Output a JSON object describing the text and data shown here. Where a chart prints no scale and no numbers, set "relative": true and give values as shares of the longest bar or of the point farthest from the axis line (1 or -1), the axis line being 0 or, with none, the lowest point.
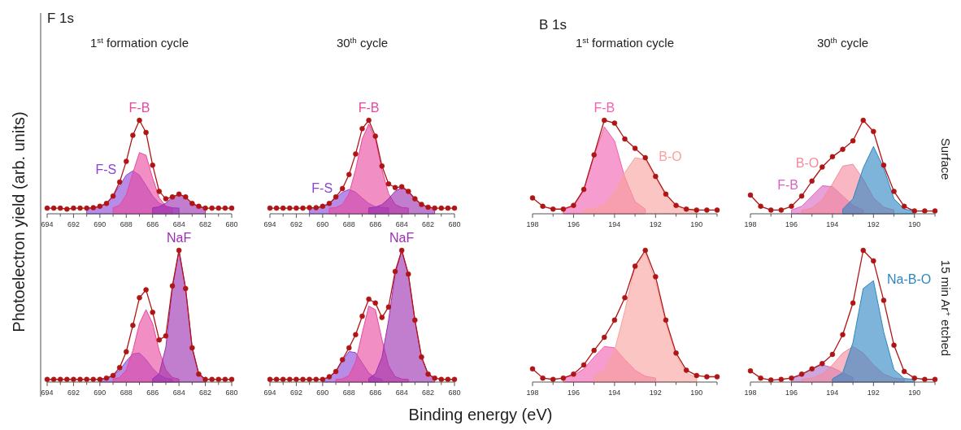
{
  "chart_data": [
    {
      "type": "area",
      "title": "1$^{st}$ formation cycle",
      "ylabel": "Photoelectron yield (arb. units)",
      "annotations": [
        "F 1s"
      ],
      "relative": true,
      "tick_labels": "x",
      "xlim": [
        694,
        680
      ],
      "xticks": [
        694,
        {
          "value": 693,
          "label": null
        },
        692,
        {
          "value": 691,
          "label": null
        },
        690,
        {
          "value": 689,
          "label": null
        },
        688,
        {
          "value": 687,
          "label": null
        },
        686,
        {
          "value": 685,
          "label": null
        },
        684,
        {
          "value": 683,
          "label": null
        },
        682,
        {
          "value": 681,
          "label": null
        },
        680
      ],
      "x": [
        694,
        693.5,
        693,
        692.5,
        692,
        691.5,
        691,
        690.5,
        690,
        689.5,
        689,
        688.5,
        688,
        687.5,
        687,
        686.5,
        686,
        685.5,
        685,
        684.5,
        684,
        683.5,
        683,
        682.5,
        682,
        681.5,
        681,
        680.5,
        680
      ],
      "series": [
        {
          "name": "F-S",
          "color": "#8a45d6",
          "x": [
            691,
            690.5,
            690,
            689.5,
            689,
            688.5,
            688,
            687.5,
            687,
            686.5,
            686,
            685.5,
            685,
            684.5,
            684
          ],
          "values": [
            0.06,
            0.064,
            0.078,
            0.114,
            0.19,
            0.303,
            0.413,
            0.46,
            0.413,
            0.303,
            0.19,
            0.114,
            0.078,
            0.064,
            0.06
          ]
        },
        {
          "name": "F-B",
          "color": "#e8489e",
          "x": [
            689,
            688.5,
            688,
            687.5,
            687,
            686.5,
            686,
            685.5,
            685,
            684.5
          ],
          "values": [
            0.064,
            0.092,
            0.203,
            0.436,
            0.655,
            0.626,
            0.383,
            0.17,
            0.083,
            0.063
          ]
        },
        {
          "color": "#9b2fb0",
          "x": [
            686,
            685.5,
            685,
            684.5,
            684,
            683.5,
            683,
            682.5,
            682
          ],
          "values": [
            0.063,
            0.075,
            0.114,
            0.176,
            0.21,
            0.176,
            0.114,
            0.075,
            0.063
          ]
        },
        {
          "type": "line",
          "marker": "circle",
          "color": "#b01515",
          "values": [
            0.06,
            0.06,
            0.06,
            0.05,
            0.06,
            0.06,
            0.06,
            0.065,
            0.08,
            0.11,
            0.19,
            0.34,
            0.56,
            0.84,
            1.0,
            0.87,
            0.52,
            0.24,
            0.16,
            0.18,
            0.21,
            0.18,
            0.11,
            0.08,
            0.06,
            0.06,
            0.06,
            0.06,
            0.06
          ]
        }
      ]
    },
    {
      "type": "area",
      "title": "30$^{th}$ cycle",
      "relative": true,
      "tick_labels": "x",
      "xlim": [
        694,
        680
      ],
      "xticks": [
        694,
        {
          "value": 693,
          "label": null
        },
        692,
        {
          "value": 691,
          "label": null
        },
        690,
        {
          "value": 689,
          "label": null
        },
        688,
        {
          "value": 687,
          "label": null
        },
        686,
        {
          "value": 685,
          "label": null
        },
        684,
        {
          "value": 683,
          "label": null
        },
        682,
        {
          "value": 681,
          "label": null
        },
        680
      ],
      "x": [
        694,
        693.5,
        693,
        692.5,
        692,
        691.5,
        691,
        690.5,
        690,
        689.5,
        689,
        688.5,
        688,
        687.5,
        687,
        686.5,
        686,
        685.5,
        685,
        684.5,
        684,
        683.5,
        683,
        682.5,
        682,
        681.5,
        681,
        680.5,
        680
      ],
      "series": [
        {
          "name": "F-S",
          "color": "#8a45d6",
          "x": [
            691,
            690.5,
            690,
            689.5,
            689,
            688.5,
            688,
            687.5,
            687,
            686.5,
            686,
            685.5,
            685
          ],
          "values": [
            0.062,
            0.066,
            0.077,
            0.11,
            0.168,
            0.231,
            0.26,
            0.231,
            0.168,
            0.11,
            0.077,
            0.066,
            0.062
          ]
        },
        {
          "name": "F-B",
          "color": "#e8489e",
          "x": [
            689.5,
            689,
            688.5,
            688,
            687.5,
            687,
            686.5,
            686,
            685.5,
            685,
            684.5,
            684,
            683.5
          ],
          "values": [
            0.061,
            0.067,
            0.1,
            0.215,
            0.472,
            0.8,
            0.96,
            0.8,
            0.472,
            0.215,
            0.1,
            0.067,
            0.061
          ]
        },
        {
          "color": "#9b2fb0",
          "x": [
            686.5,
            686,
            685.5,
            685,
            684.5,
            684,
            683.5,
            683,
            682.5,
            682,
            681.5
          ],
          "values": [
            0.062,
            0.07,
            0.098,
            0.161,
            0.241,
            0.28,
            0.241,
            0.161,
            0.098,
            0.07,
            0.062
          ]
        },
        {
          "type": "line",
          "marker": "circle",
          "color": "#b01515",
          "values": [
            0.06,
            0.06,
            0.06,
            0.06,
            0.06,
            0.06,
            0.065,
            0.065,
            0.08,
            0.11,
            0.18,
            0.27,
            0.42,
            0.64,
            0.91,
            1.0,
            0.83,
            0.51,
            0.32,
            0.28,
            0.29,
            0.24,
            0.16,
            0.1,
            0.07,
            0.06,
            0.06,
            0.06,
            0.06
          ]
        }
      ]
    },
    {
      "type": "area",
      "title": "1$^{st}$ formation cycle",
      "annotations": [
        "B 1s"
      ],
      "relative": true,
      "tick_labels": "x",
      "xlim": [
        198,
        189
      ],
      "xticks": [
        198,
        {
          "value": 197,
          "label": null
        },
        196,
        {
          "value": 195,
          "label": null
        },
        194,
        {
          "value": 193,
          "label": null
        },
        192,
        {
          "value": 191,
          "label": null
        },
        190,
        {
          "value": 189,
          "label": null
        }
      ],
      "x": [
        198,
        197.5,
        197,
        196.5,
        196,
        195.5,
        195,
        194.5,
        194,
        193.5,
        193,
        192.5,
        192,
        191.5,
        191,
        190.5,
        190,
        189.5,
        189
      ],
      "series": [
        {
          "name": "F-B",
          "color": "#f060b0",
          "x": [
            196.5,
            196,
            195.5,
            195,
            194.5,
            194,
            193.5,
            193,
            192.5
          ],
          "values": [
            0.045,
            0.08,
            0.25,
            0.62,
            0.93,
            0.78,
            0.39,
            0.13,
            0.05
          ]
        },
        {
          "name": "B-O",
          "color": "#f7a29c",
          "x": [
            195.5,
            195,
            194.5,
            194,
            193.5,
            193,
            192.5,
            192,
            191.5,
            191,
            190.5,
            190
          ],
          "values": [
            0.043,
            0.053,
            0.1,
            0.23,
            0.44,
            0.6,
            0.58,
            0.39,
            0.2,
            0.09,
            0.05,
            0.04
          ]
        },
        {
          "type": "line",
          "marker": "circle",
          "color": "#b01515",
          "values": [
            0.17,
            0.08,
            0.05,
            0.05,
            0.09,
            0.26,
            0.63,
            1.0,
            0.97,
            0.8,
            0.7,
            0.6,
            0.4,
            0.21,
            0.09,
            0.05,
            0.04,
            0.04,
            0.04
          ]
        }
      ]
    },
    {
      "type": "area",
      "title": "30$^{th}$ cycle",
      "annotations": [
        "Surface"
      ],
      "relative": true,
      "tick_labels": "x",
      "xlim": [
        198,
        189
      ],
      "xticks": [
        198,
        {
          "value": 197,
          "label": null
        },
        196,
        {
          "value": 195,
          "label": null
        },
        194,
        {
          "value": 193,
          "label": null
        },
        192,
        {
          "value": 191,
          "label": null
        },
        190,
        {
          "value": 189,
          "label": null
        }
      ],
      "x": [
        198,
        197.5,
        197,
        196.5,
        196,
        195.5,
        195,
        194.5,
        194,
        193.5,
        193,
        192.5,
        192,
        191.5,
        191,
        190.5,
        190,
        189.5,
        189
      ],
      "series": [
        {
          "name": "F-B",
          "color": "#d865c0",
          "x": [
            196,
            195.5,
            195,
            194.5,
            194,
            193.5,
            193,
            192.5
          ],
          "values": [
            0.04,
            0.08,
            0.19,
            0.3,
            0.29,
            0.19,
            0.09,
            0.04
          ]
        },
        {
          "name": "B-O",
          "color": "#f48a9e",
          "x": [
            195.5,
            195,
            194.5,
            194,
            193.5,
            193,
            192.5,
            192,
            191.5,
            191
          ],
          "values": [
            0.035,
            0.06,
            0.15,
            0.32,
            0.51,
            0.53,
            0.37,
            0.17,
            0.07,
            0.04
          ]
        },
        {
          "color": "#2e86c1",
          "x": [
            193.5,
            193,
            192.5,
            192,
            191.5,
            191,
            190.5,
            190
          ],
          "values": [
            0.05,
            0.16,
            0.49,
            0.72,
            0.49,
            0.16,
            0.05,
            0.03
          ]
        },
        {
          "type": "line",
          "marker": "circle",
          "color": "#b01515",
          "values": [
            0.2,
            0.08,
            0.04,
            0.04,
            0.08,
            0.19,
            0.35,
            0.5,
            0.61,
            0.69,
            0.78,
            1.0,
            0.88,
            0.52,
            0.24,
            0.08,
            0.03,
            0.03,
            0.03
          ]
        }
      ]
    },
    {
      "type": "area",
      "relative": true,
      "tick_labels": "x",
      "xlim": [
        694,
        680
      ],
      "xticks": [
        694,
        {
          "value": 693,
          "label": null
        },
        692,
        {
          "value": 691,
          "label": null
        },
        690,
        {
          "value": 689,
          "label": null
        },
        688,
        {
          "value": 687,
          "label": null
        },
        686,
        {
          "value": 685,
          "label": null
        },
        684,
        {
          "value": 683,
          "label": null
        },
        682,
        {
          "value": 681,
          "label": null
        },
        680
      ],
      "x": [
        694,
        693.5,
        693,
        692.5,
        692,
        691.5,
        691,
        690.5,
        690,
        689.5,
        689,
        688.5,
        688,
        687.5,
        687,
        686.5,
        686,
        685.5,
        685,
        684.5,
        684,
        683.5,
        683,
        682.5,
        682,
        681.5,
        681,
        680.5,
        680
      ],
      "series": [
        {
          "color": "#8a45d6",
          "x": [
            690,
            689.5,
            689,
            688.5,
            688,
            687.5,
            687,
            686.5,
            686,
            685.5,
            685,
            684.5
          ],
          "values": [
            0.022,
            0.028,
            0.048,
            0.092,
            0.158,
            0.214,
            0.22,
            0.172,
            0.104,
            0.055,
            0.03,
            0.022
          ]
        },
        {
          "color": "#e8489e",
          "x": [
            689,
            688.5,
            688,
            687.5,
            687,
            686.5,
            686,
            685.5,
            685,
            684.5,
            684
          ],
          "values": [
            0.022,
            0.035,
            0.092,
            0.238,
            0.444,
            0.55,
            0.444,
            0.238,
            0.092,
            0.035,
            0.022
          ]
        },
        {
          "name": "NaF",
          "color": "#9b2fb0",
          "x": [
            686,
            685.5,
            685,
            684.5,
            684,
            683.5,
            683,
            682.5,
            682
          ],
          "values": [
            0.024,
            0.063,
            0.264,
            0.713,
            1.0,
            0.713,
            0.264,
            0.063,
            0.024
          ]
        },
        {
          "type": "line",
          "marker": "circle",
          "color": "#b01515",
          "values": [
            0.02,
            0.02,
            0.02,
            0.02,
            0.02,
            0.02,
            0.02,
            0.02,
            0.02,
            0.03,
            0.05,
            0.11,
            0.23,
            0.43,
            0.64,
            0.7,
            0.53,
            0.32,
            0.35,
            0.73,
            1.0,
            0.71,
            0.26,
            0.06,
            0.02,
            0.02,
            0.02,
            0.02,
            0.02
          ]
        }
      ]
    },
    {
      "type": "area",
      "xlabel": "Binding energy (eV)",
      "relative": true,
      "tick_labels": "x",
      "xlim": [
        694,
        680
      ],
      "xticks": [
        694,
        {
          "value": 693,
          "label": null
        },
        692,
        {
          "value": 691,
          "label": null
        },
        690,
        {
          "value": 689,
          "label": null
        },
        688,
        {
          "value": 687,
          "label": null
        },
        686,
        {
          "value": 685,
          "label": null
        },
        684,
        {
          "value": 683,
          "label": null
        },
        682,
        {
          "value": 681,
          "label": null
        },
        680
      ],
      "x": [
        694,
        693.5,
        693,
        692.5,
        692,
        691.5,
        691,
        690.5,
        690,
        689.5,
        689,
        688.5,
        688,
        687.5,
        687,
        686.5,
        686,
        685.5,
        685,
        684.5,
        684,
        683.5,
        683,
        682.5,
        682,
        681.5,
        681,
        680.5,
        680
      ],
      "series": [
        {
          "color": "#8a45d6",
          "x": [
            690,
            689.5,
            689,
            688.5,
            688,
            687.5,
            687,
            686.5,
            686,
            685.5
          ],
          "values": [
            0.023,
            0.037,
            0.081,
            0.162,
            0.232,
            0.223,
            0.145,
            0.069,
            0.032,
            0.022
          ]
        },
        {
          "color": "#e8489e",
          "x": [
            689,
            688.5,
            688,
            687.5,
            687,
            686.5,
            686,
            685.5,
            685,
            684.5,
            684,
            683.5
          ],
          "values": [
            0.02,
            0.024,
            0.05,
            0.153,
            0.372,
            0.577,
            0.549,
            0.322,
            0.124,
            0.041,
            0.023,
            0.02
          ]
        },
        {
          "name": "NaF",
          "color": "#9b2fb0",
          "x": [
            686.5,
            686,
            685.5,
            685,
            684.5,
            684,
            683.5,
            683,
            682.5,
            682,
            681.5
          ],
          "values": [
            0.027,
            0.063,
            0.189,
            0.469,
            0.82,
            1.0,
            0.82,
            0.469,
            0.189,
            0.063,
            0.027
          ]
        },
        {
          "type": "line",
          "marker": "circle",
          "color": "#b01515",
          "values": [
            0.02,
            0.02,
            0.02,
            0.02,
            0.02,
            0.02,
            0.02,
            0.02,
            0.02,
            0.04,
            0.08,
            0.17,
            0.26,
            0.36,
            0.5,
            0.63,
            0.6,
            0.49,
            0.57,
            0.84,
            1.0,
            0.82,
            0.47,
            0.19,
            0.06,
            0.03,
            0.02,
            0.02,
            0.02
          ]
        }
      ]
    },
    {
      "type": "area",
      "relative": true,
      "tick_labels": "x",
      "xlim": [
        198,
        189
      ],
      "xticks": [
        198,
        {
          "value": 197,
          "label": null
        },
        196,
        {
          "value": 195,
          "label": null
        },
        194,
        {
          "value": 193,
          "label": null
        },
        192,
        {
          "value": 191,
          "label": null
        },
        190,
        {
          "value": 189,
          "label": null
        }
      ],
      "x": [
        198,
        197.5,
        197,
        196.5,
        196,
        195.5,
        195,
        194.5,
        194,
        193.5,
        193,
        192.5,
        192,
        191.5,
        191,
        190.5,
        190,
        189.5,
        189
      ],
      "series": [
        {
          "color": "#f060b0",
          "x": [
            196.5,
            196,
            195.5,
            195,
            194.5,
            194,
            193.5,
            193,
            192.5,
            192
          ],
          "values": [
            0.033,
            0.05,
            0.1,
            0.19,
            0.27,
            0.26,
            0.17,
            0.09,
            0.044,
            0.03
          ]
        },
        {
          "color": "#f7a29c",
          "x": [
            195,
            194.5,
            194,
            193.5,
            193,
            192.5,
            192,
            191.5,
            191,
            190.5,
            190
          ],
          "values": [
            0.04,
            0.09,
            0.24,
            0.54,
            0.88,
            0.98,
            0.76,
            0.45,
            0.2,
            0.07,
            0.035
          ]
        },
        {
          "type": "line",
          "marker": "circle",
          "color": "#b01515",
          "values": [
            0.1,
            0.03,
            0.02,
            0.03,
            0.06,
            0.13,
            0.24,
            0.34,
            0.47,
            0.64,
            0.88,
            1.0,
            0.8,
            0.47,
            0.22,
            0.09,
            0.05,
            0.04,
            0.04
          ]
        }
      ]
    },
    {
      "type": "area",
      "annotations": [
        "15 min Ar$^{+}$ etched"
      ],
      "relative": true,
      "tick_labels": "x",
      "xlim": [
        198,
        189
      ],
      "xticks": [
        198,
        {
          "value": 197,
          "label": null
        },
        196,
        {
          "value": 195,
          "label": null
        },
        194,
        {
          "value": 193,
          "label": null
        },
        192,
        {
          "value": 191,
          "label": null
        },
        190,
        {
          "value": 189,
          "label": null
        }
      ],
      "x": [
        198,
        197.5,
        197,
        196.5,
        196,
        195.5,
        195,
        194.5,
        194,
        193.5,
        193,
        192.5,
        192,
        191.5,
        191,
        190.5,
        190,
        189.5,
        189
      ],
      "series": [
        {
          "color": "#b070c8",
          "x": [
            196,
            195.5,
            195,
            194.5,
            194,
            193.5,
            193
          ],
          "values": [
            0.028,
            0.05,
            0.1,
            0.13,
            0.11,
            0.07,
            0.035
          ]
        },
        {
          "color": "#f48a9e",
          "x": [
            195.5,
            195,
            194.5,
            194,
            193.5,
            193,
            192.5,
            192,
            191.5,
            191,
            190.5
          ],
          "values": [
            0.022,
            0.03,
            0.06,
            0.13,
            0.22,
            0.27,
            0.22,
            0.13,
            0.06,
            0.03,
            0.022
          ]
        },
        {
          "name": "Na-B-O",
          "color": "#2e86c1",
          "x": [
            194,
            193.5,
            193,
            192.5,
            192,
            191.5,
            191,
            190.5,
            190
          ],
          "values": [
            0.024,
            0.07,
            0.3,
            0.71,
            0.77,
            0.38,
            0.094,
            0.027,
            0.02
          ]
        },
        {
          "type": "line",
          "marker": "circle",
          "color": "#b01515",
          "values": [
            0.085,
            0.03,
            0.015,
            0.02,
            0.03,
            0.06,
            0.1,
            0.14,
            0.21,
            0.36,
            0.6,
            1.0,
            0.92,
            0.62,
            0.28,
            0.08,
            0.03,
            0.02,
            0.02
          ]
        }
      ]
    }
  ]
}
